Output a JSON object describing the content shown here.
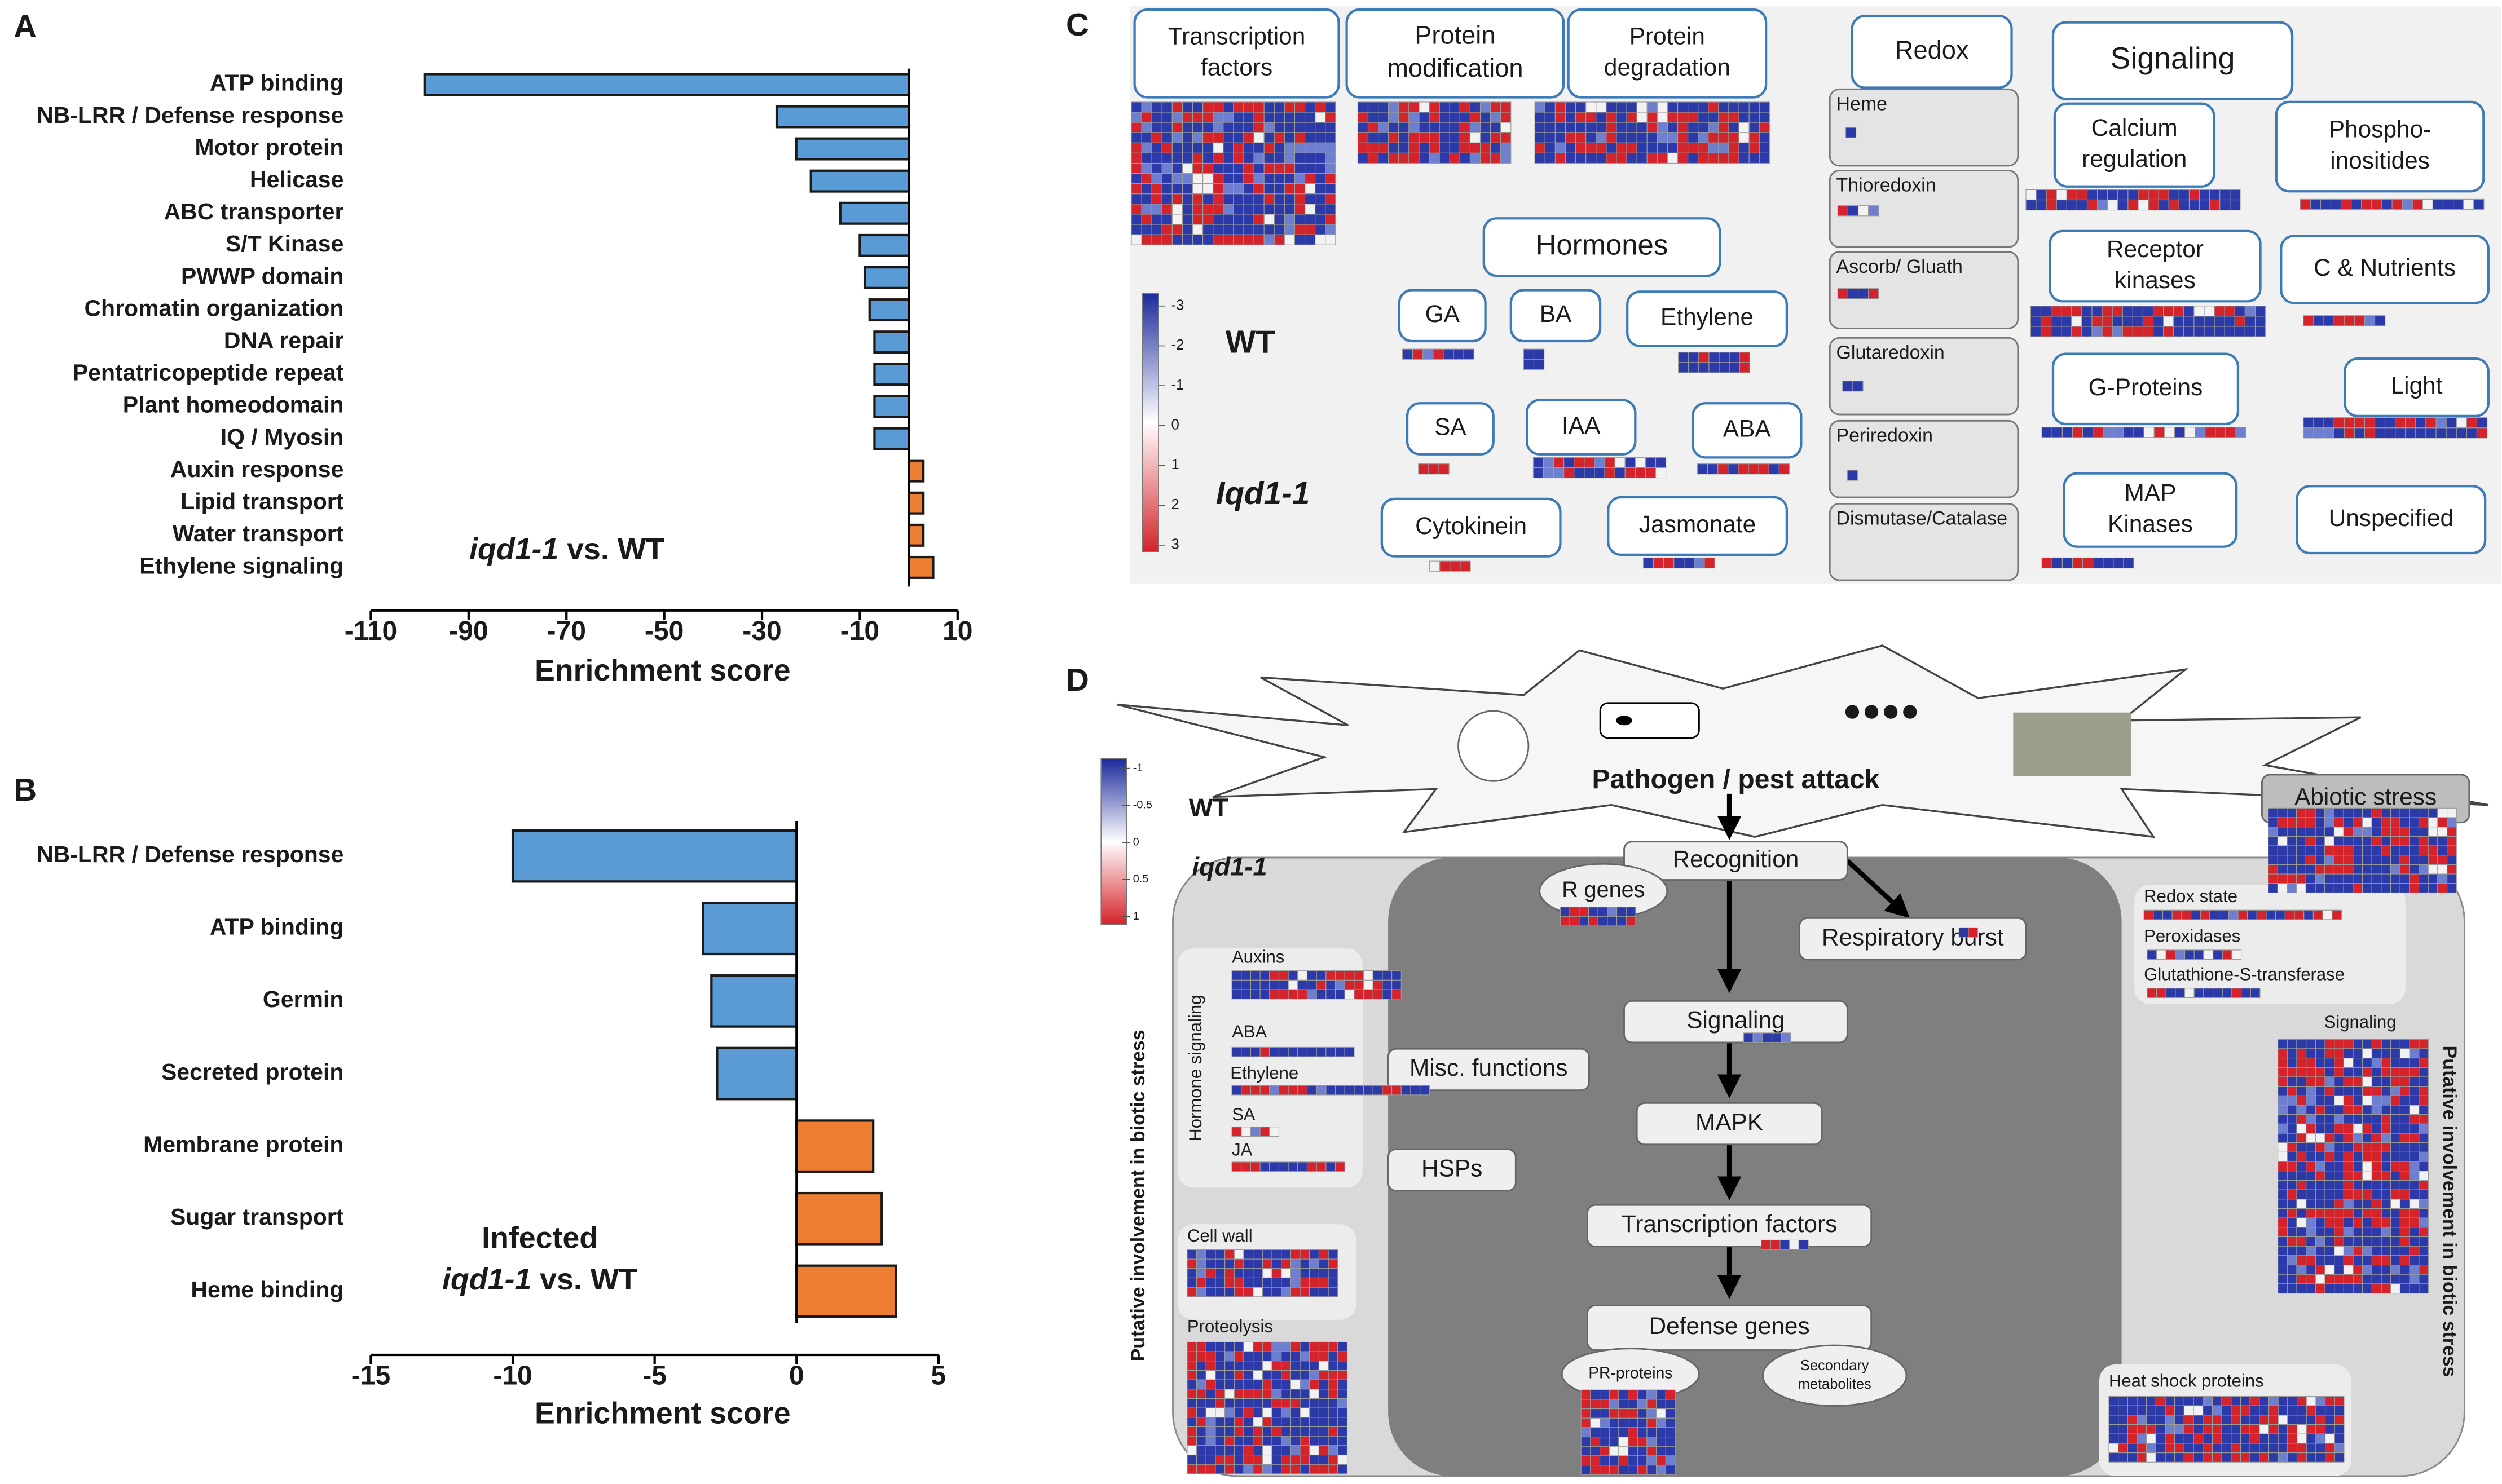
{
  "chart_data": [
    {
      "type": "bar",
      "orientation": "horizontal",
      "panel": "A",
      "categories": [
        "ATP binding",
        "NB-LRR / Defense response",
        "Motor protein",
        "Helicase",
        "ABC transporter",
        "S/T Kinase",
        "PWWP domain",
        "Chromatin organization",
        "DNA repair",
        "Pentatricopeptide repeat",
        "Plant homeodomain",
        "IQ / Myosin",
        "Auxin response",
        "Lipid transport",
        "Water transport",
        "Ethylene signaling"
      ],
      "values": [
        -99,
        -27,
        -23,
        -20,
        -14,
        -10,
        -9,
        -8,
        -7,
        -7,
        -7,
        -7,
        3,
        3,
        3,
        5
      ],
      "negative_color": "#5b9bd5",
      "positive_color": "#ed7d31",
      "xlim": [
        -110,
        10
      ],
      "xticks": [
        -110,
        -90,
        -70,
        -50,
        -30,
        -10,
        10
      ],
      "xlabel": "Enrichment score",
      "annotation": [
        [
          "iqd1-1",
          " vs. WT"
        ]
      ]
    },
    {
      "type": "bar",
      "orientation": "horizontal",
      "panel": "B",
      "categories": [
        "NB-LRR / Defense response",
        "ATP binding",
        "Germin",
        "Secreted protein",
        "Membrane protein",
        "Sugar transport",
        "Heme binding"
      ],
      "values": [
        -10,
        -3.3,
        -3,
        -2.8,
        2.7,
        3,
        3.5
      ],
      "negative_color": "#5b9bd5",
      "positive_color": "#ed7d31",
      "xlim": [
        -15,
        5
      ],
      "xticks": [
        -15,
        -10,
        -5,
        0,
        5
      ],
      "xlabel": "Enrichment score",
      "annotation": [
        [
          "Infected"
        ],
        [
          "iqd1-1",
          " vs. WT"
        ]
      ]
    }
  ],
  "panel_c": {
    "panel": "C",
    "boxes": [
      [
        "Transcription",
        "factors"
      ],
      [
        "Protein",
        "modification"
      ],
      [
        "Protein",
        "degradation"
      ],
      [
        "Redox"
      ],
      [
        "Signaling"
      ],
      [
        "Hormones"
      ],
      [
        "GA"
      ],
      [
        "BA"
      ],
      [
        "Ethylene"
      ],
      [
        "SA"
      ],
      [
        "IAA"
      ],
      [
        "ABA"
      ],
      [
        "Cytokinein"
      ],
      [
        "Jasmonate"
      ],
      [
        "Calcium",
        "regulation"
      ],
      [
        "Phospho-",
        "inositides"
      ],
      [
        "Receptor",
        "kinases"
      ],
      [
        "C & Nutrients"
      ],
      [
        "G-Proteins"
      ],
      [
        "Light"
      ],
      [
        "MAP",
        "Kinases"
      ],
      [
        "Unspecified"
      ]
    ],
    "redox_items": [
      "Heme",
      "Thioredoxin",
      "Ascorb/ Gluath",
      "Glutaredoxin",
      "Periredoxin",
      "Dismutase/Catalase"
    ],
    "genotypes": [
      "WT",
      "Iqd1-1"
    ],
    "legend_ticks": [
      -3,
      -2,
      -1,
      0,
      1,
      2,
      3
    ]
  },
  "panel_d": {
    "panel": "D",
    "title": "Pathogen / pest attack",
    "nodes": [
      [
        "Recognition"
      ],
      [
        "R genes"
      ],
      [
        "Respiratory burst"
      ],
      [
        "Signaling"
      ],
      [
        "MAPK"
      ],
      [
        "Transcription factors"
      ],
      [
        "Defense genes"
      ],
      [
        "PR-proteins"
      ],
      [
        "Secondary",
        "metabolites"
      ],
      [
        "Misc. functions"
      ],
      [
        "HSPs"
      ],
      [
        "Abiotic stress"
      ]
    ],
    "groups": [
      "Auxins",
      "ABA",
      "Ethylene",
      "SA",
      "JA",
      "Cell wall",
      "Proteolysis",
      "Redox state",
      "Peroxidases",
      "Glutathione-S-transferase",
      "Signaling",
      "Heat shock proteins"
    ],
    "hormone_group": "Hormone signaling",
    "side_label": "Putative involvement in biotic stress",
    "genotypes": [
      "WT",
      "iqd1-1"
    ],
    "legend_ticks": [
      -1,
      -0.5,
      0,
      0.5,
      1
    ]
  }
}
